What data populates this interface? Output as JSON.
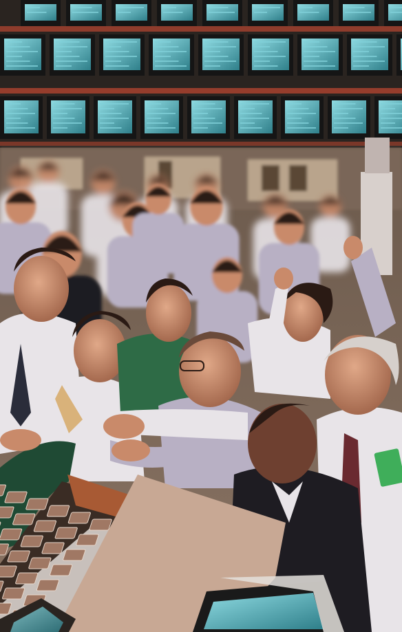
{
  "image": {
    "palette": {
      "ceiling": "#2a2420",
      "ceiling_beam": "#b04430",
      "monitor_frame": "#151515",
      "monitor_screen": "#3c9aa6",
      "monitor_glow": "#7fd0d8",
      "floor_wall": "#8a7a6c",
      "booth": "#b9a48c",
      "shirt": "#e8e4e8",
      "shirt_shadow": "#b8b0c4",
      "skin": "#c98a6a",
      "skin_shadow": "#9a5e44",
      "hair_dark": "#2a1a14",
      "hair_grey": "#d6d0cc",
      "jacket_dark": "#1e1c22",
      "jacket_green": "#1f4a34",
      "paper_tray": "#c8a894",
      "paper_cell": "#a07864",
      "badge_green": "#3fae5a"
    }
  }
}
